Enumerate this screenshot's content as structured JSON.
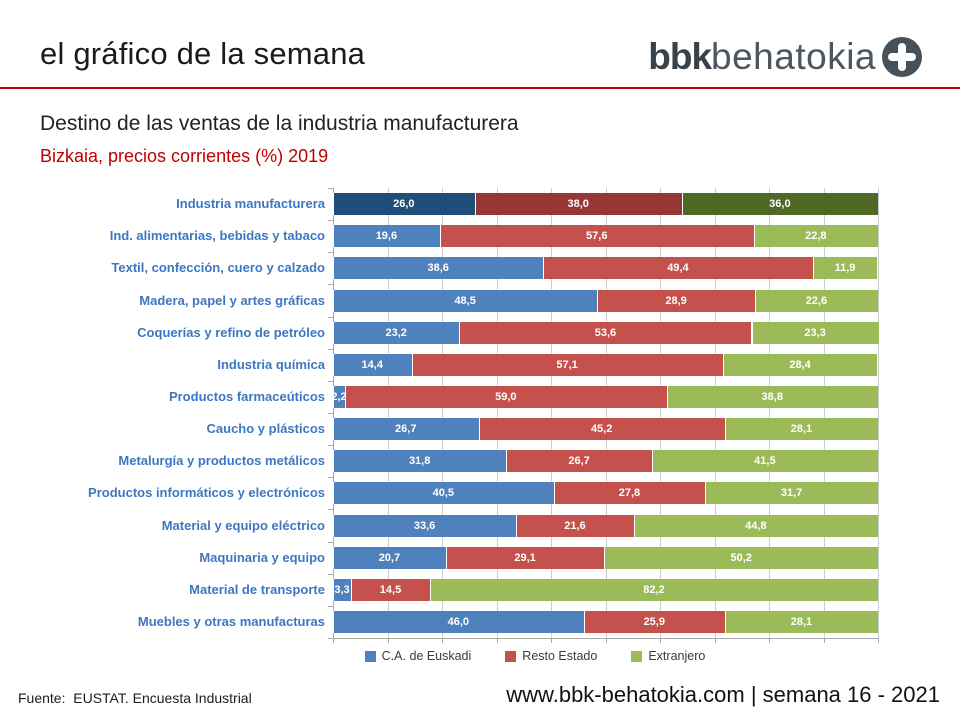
{
  "header": {
    "title": "el gráfico de la semana",
    "logo": {
      "bold_text": "bbk",
      "light_text": "behatokia",
      "circle_color": "#46515a",
      "plus_color": "#ffffff"
    },
    "rule_color": "#c00000"
  },
  "chart_header": {
    "title": "Destino de las ventas de la industria manufacturera",
    "subtitle": "Bizkaia, precios corrientes (%) 2019",
    "subtitle_color": "#c00000"
  },
  "chart_data": {
    "type": "bar",
    "orientation": "horizontal",
    "stacked": true,
    "xlim": [
      0,
      100
    ],
    "grid_interval": 10,
    "grid_on": true,
    "legend_position": "bottom",
    "value_decimal_separator": ",",
    "category_label_color": "#3d77c2",
    "value_label_color": "#ffffff",
    "categories": [
      "Industria manufacturera",
      "Ind. alimentarias, bebidas y tabaco",
      "Textil, confección, cuero y calzado",
      "Madera, papel y artes gráficas",
      "Coquerías y refino de petróleo",
      "Industria química",
      "Productos farmaceúticos",
      "Caucho y plásticos",
      "Metalurgía y productos metálicos",
      "Productos informáticos y electrónicos",
      "Material y equipo eléctrico",
      "Maquinaria y equipo",
      "Material de transporte",
      "Muebles y otras manufacturas"
    ],
    "total_row_index": 0,
    "series": [
      {
        "name": "C.A. de Euskadi",
        "color": "#4f81bd",
        "total_row_color": "#1f4e79",
        "values": [
          26.0,
          19.6,
          38.6,
          48.5,
          23.2,
          14.4,
          2.2,
          26.7,
          31.8,
          40.5,
          33.6,
          20.7,
          3.3,
          46.0
        ]
      },
      {
        "name": "Resto Estado",
        "color": "#c5514d",
        "total_row_color": "#963735",
        "values": [
          38.0,
          57.6,
          49.4,
          28.9,
          53.6,
          57.1,
          59.0,
          45.2,
          26.7,
          27.8,
          21.6,
          29.1,
          14.5,
          25.9
        ]
      },
      {
        "name": "Extranjero",
        "color": "#9bbb59",
        "total_row_color": "#4e6826",
        "values": [
          36.0,
          22.8,
          11.9,
          22.6,
          23.3,
          28.4,
          38.8,
          28.1,
          41.5,
          31.7,
          44.8,
          50.2,
          82.2,
          28.1
        ]
      }
    ]
  },
  "footer": {
    "source": "Fuente:  EUSTAT. Encuesta Industrial",
    "site": "www.bbk-behatokia.com | semana 16 - 2021"
  }
}
